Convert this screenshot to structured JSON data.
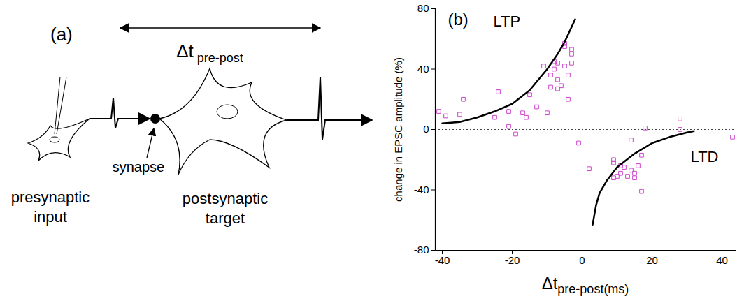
{
  "diagram": {
    "panel_label": "(a)",
    "interval_label": "Δt pre-post",
    "nodes": [
      {
        "label": "presynaptic input"
      },
      {
        "label": "synapse"
      },
      {
        "label": "postsynaptic target"
      }
    ]
  },
  "chart_data": {
    "panel_label": "(b)",
    "type": "scatter",
    "xlabel": "Δt pre-post(ms)",
    "ylabel": "change in EPSC amplitude (%)",
    "xlim": [
      -42,
      44
    ],
    "ylim": [
      -80,
      80
    ],
    "xticks": [
      -40,
      -20,
      0,
      20,
      40
    ],
    "yticks": [
      -80,
      -40,
      0,
      40,
      80
    ],
    "series": [
      {
        "type": "scatter",
        "color": "#cc44cc",
        "marker": "square",
        "x": [
          -41,
          -39,
          -35,
          -34,
          -25,
          -24,
          -21,
          -21,
          -19,
          -17,
          -16,
          -15,
          -13,
          -11,
          -10,
          -9,
          -9,
          -8,
          -8,
          -7,
          -7,
          -7,
          -6,
          -5,
          -5,
          -5,
          -4,
          -4,
          -3,
          -3,
          -3,
          -1,
          2,
          9,
          9,
          10,
          9,
          11,
          11,
          12,
          13,
          14,
          14,
          15,
          15,
          16,
          17,
          17,
          18,
          28,
          28,
          43
        ],
        "values": [
          12,
          9,
          10,
          20,
          8,
          25,
          12,
          2,
          -3,
          11,
          8,
          23,
          15,
          42,
          11,
          28,
          36,
          45,
          40,
          44,
          33,
          27,
          29,
          57,
          55,
          42,
          36,
          20,
          53,
          50,
          44,
          -9,
          -26,
          -20,
          -22,
          -31,
          -32,
          -29,
          -24,
          -25,
          -31,
          -27,
          -7,
          -32,
          -29,
          -24,
          -17,
          -41,
          1,
          7,
          0,
          -5
        ]
      },
      {
        "name": "LTP",
        "type": "line",
        "color": "#000000",
        "x": [
          -40,
          -35,
          -30,
          -25,
          -20,
          -15,
          -10,
          -7,
          -5,
          -3,
          -2
        ],
        "values": [
          4,
          5,
          8,
          12,
          17,
          26,
          40,
          50,
          58,
          68,
          73
        ]
      },
      {
        "name": "LTD",
        "type": "line",
        "color": "#000000",
        "x": [
          3,
          4,
          5,
          7,
          10,
          15,
          20,
          25,
          30,
          32
        ],
        "values": [
          -63,
          -50,
          -42,
          -34,
          -25,
          -16,
          -9,
          -5,
          -2,
          -1
        ]
      }
    ]
  }
}
